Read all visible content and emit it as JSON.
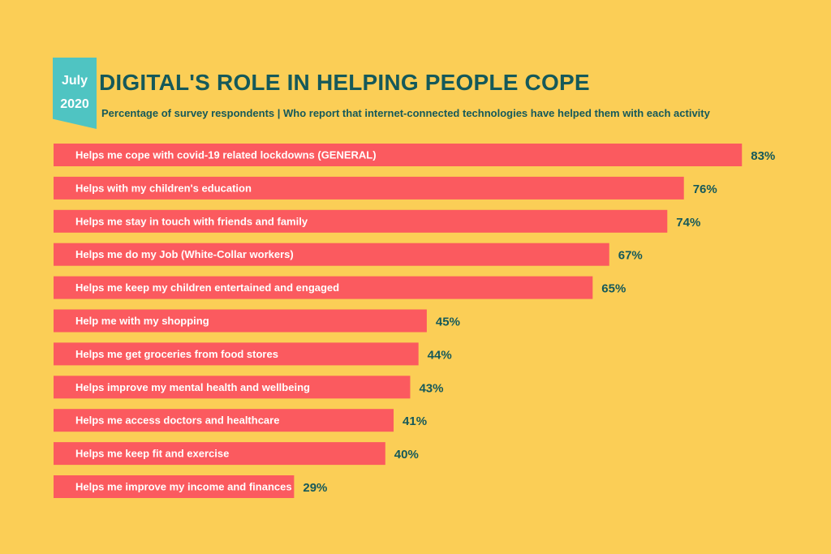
{
  "header": {
    "badge_month": "July",
    "badge_year": "2020",
    "title": "DIGITAL'S ROLE IN HELPING PEOPLE COPE",
    "subtitle": "Percentage of survey respondents | Who report that internet-connected technologies have helped them with each activity"
  },
  "colors": {
    "background": "#fbce56",
    "bar": "#fb5a5f",
    "badge": "#4fc4c2",
    "text_dark": "#15595a",
    "bar_label": "#ffffff"
  },
  "chart_data": {
    "type": "bar",
    "orientation": "horizontal",
    "categories": [
      "Helps me cope with covid-19 related lockdowns (GENERAL)",
      "Helps with my children's education",
      "Helps me stay in touch with friends and family",
      "Helps me do my Job (White-Collar workers)",
      "Helps me keep my children entertained and engaged",
      "Help me with my shopping",
      "Helps me get groceries from food stores",
      "Helps improve my mental health and wellbeing",
      "Helps me access doctors and healthcare",
      "Helps me keep fit and exercise",
      "Helps me improve my income and finances"
    ],
    "values": [
      83,
      76,
      74,
      67,
      65,
      45,
      44,
      43,
      41,
      40,
      29
    ],
    "value_labels": [
      "83%",
      "76%",
      "74%",
      "67%",
      "65%",
      "45%",
      "44%",
      "43%",
      "41%",
      "40%",
      "29%"
    ],
    "unit": "%",
    "xlim": [
      0,
      100
    ],
    "grid": false,
    "legend": "none"
  }
}
